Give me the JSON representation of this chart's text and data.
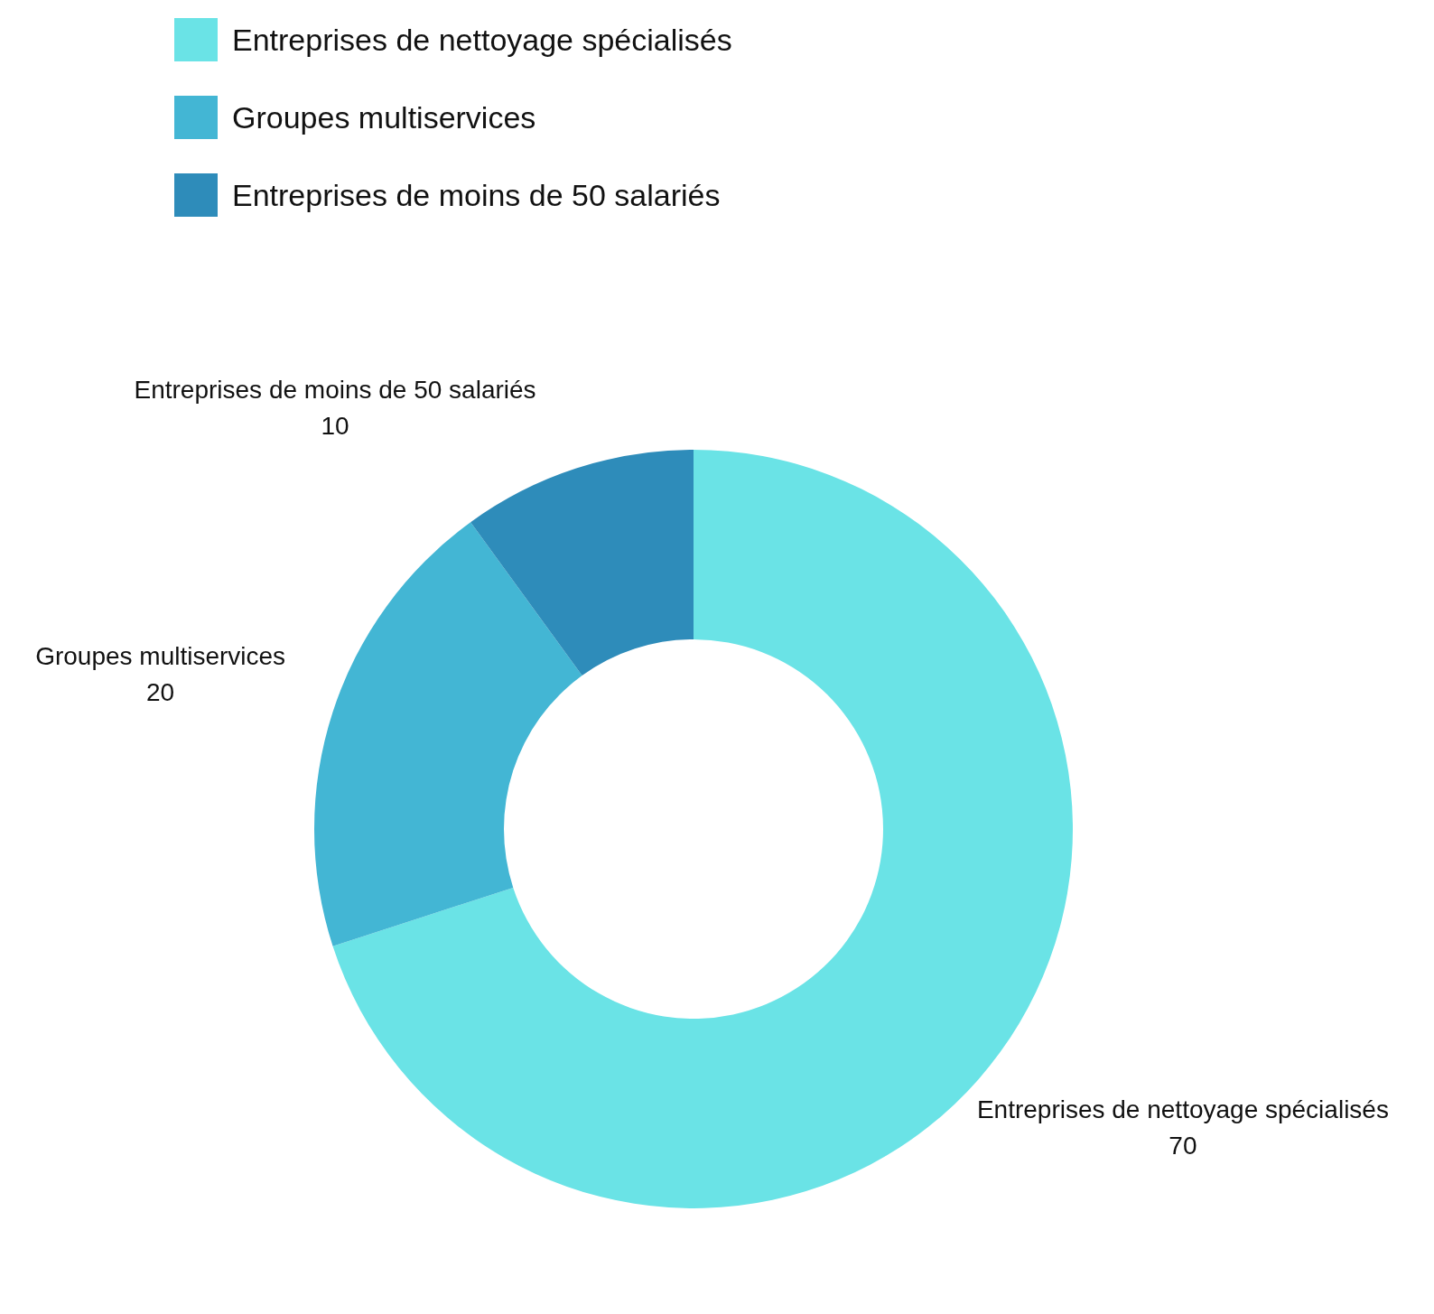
{
  "chart_data": {
    "type": "donut",
    "categories": [
      "Entreprises de nettoyage spécialisés",
      "Groupes multiservices",
      "Entreprises de moins de 50 salariés"
    ],
    "values": [
      70,
      20,
      10
    ],
    "colors": [
      "#6ae3e6",
      "#43b6d4",
      "#2e8cba"
    ],
    "data_labels": true,
    "legend": "top"
  }
}
